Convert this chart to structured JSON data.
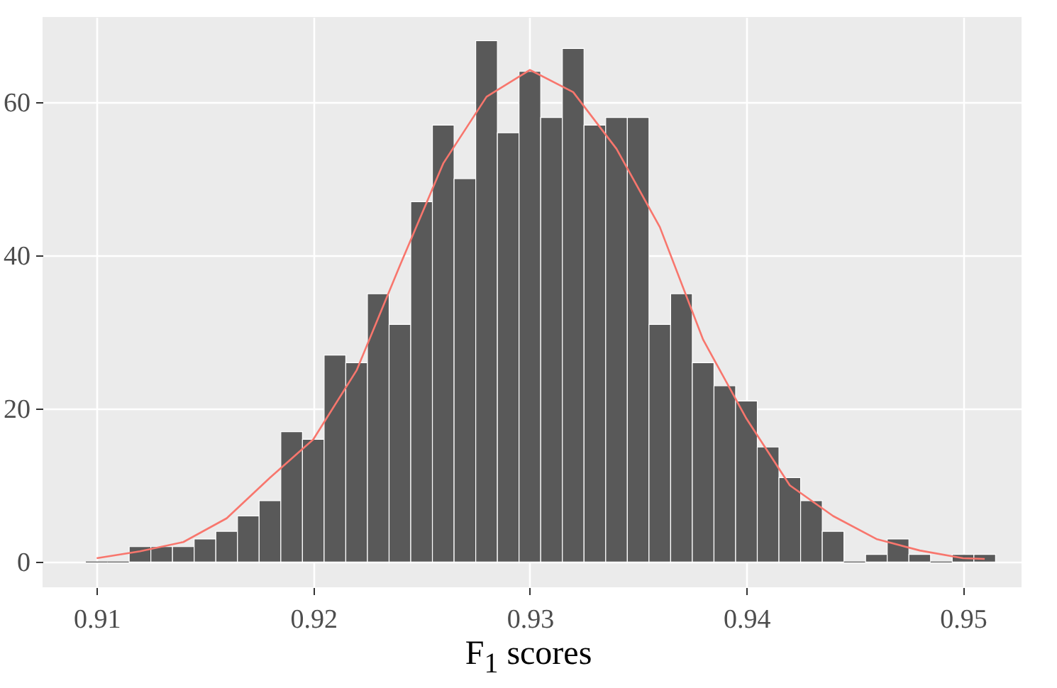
{
  "chart_data": {
    "type": "histogram",
    "xlabel": "F$_{1}$ scores",
    "color": "#595959",
    "bins": [
      0.9095,
      0.9105,
      0.9115,
      0.9125,
      0.9135,
      0.9145,
      0.9155,
      0.9165,
      0.9175,
      0.9185,
      0.9195,
      0.9205,
      0.9215,
      0.9225,
      0.9235,
      0.9245,
      0.9255,
      0.9265,
      0.9275,
      0.9285,
      0.9295,
      0.9305,
      0.9315,
      0.9325,
      0.9335,
      0.9345,
      0.9355,
      0.9365,
      0.9375,
      0.9385,
      0.9395,
      0.9405,
      0.9415,
      0.9425,
      0.9435,
      0.9445,
      0.9455,
      0.9465,
      0.9475,
      0.9485,
      0.9495,
      0.9505,
      0.9515
    ],
    "values": [
      0,
      0,
      2,
      2,
      2,
      3,
      4,
      6,
      8,
      17,
      16,
      27,
      26,
      35,
      31,
      47,
      57,
      50,
      68,
      56,
      64,
      58,
      67,
      57,
      58,
      58,
      31,
      35,
      26,
      23,
      21,
      15,
      11,
      8,
      4,
      0,
      1,
      3,
      1,
      0,
      1,
      1
    ],
    "series": [
      {
        "type": "line",
        "color": "#f8766d",
        "x": [
          0.91,
          0.912,
          0.914,
          0.916,
          0.918,
          0.92,
          0.922,
          0.924,
          0.926,
          0.928,
          0.93,
          0.932,
          0.934,
          0.936,
          0.938,
          0.94,
          0.942,
          0.944,
          0.946,
          0.948,
          0.95,
          0.951
        ],
        "values": [
          0.5,
          1.4,
          2.6,
          5.7,
          11,
          16,
          25,
          38.7,
          52,
          60.7,
          64.2,
          61.3,
          53.9,
          43.7,
          29,
          18.7,
          10,
          6,
          3,
          1.5,
          0.5,
          0.4
        ]
      }
    ],
    "xlim": [
      0.9075,
      0.9527
    ],
    "ylim": [
      -3.3,
      71.1
    ],
    "xticks": [
      0.91,
      0.92,
      0.93,
      0.94,
      0.95
    ],
    "yticks": [
      0,
      20,
      40,
      60
    ],
    "grid": true
  }
}
